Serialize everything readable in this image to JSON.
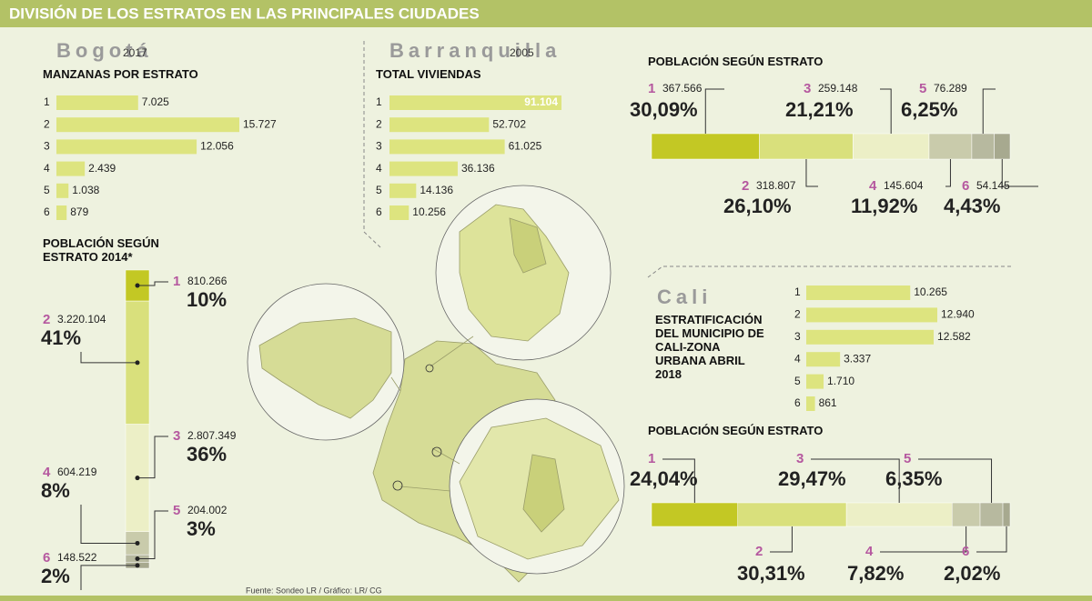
{
  "title": "DIVISIÓN DE LOS ESTRATOS EN LAS PRINCIPALES CIUDADES",
  "source": "Fuente: Sondeo LR / Gráfico: LR/ CG",
  "chart_data": [
    {
      "type": "bar",
      "orientation": "horizontal",
      "city": "Bogotá",
      "year": "2017",
      "title": "MANZANAS POR ESTRATO",
      "categories": [
        "1",
        "2",
        "3",
        "4",
        "5",
        "6"
      ],
      "values": [
        7025,
        15727,
        12056,
        2439,
        1038,
        879
      ],
      "value_labels": [
        "7.025",
        "15.727",
        "12.056",
        "2.439",
        "1.038",
        "879"
      ],
      "color": "#dde47f"
    },
    {
      "type": "stacked_bar",
      "orientation": "vertical",
      "title": "POBLACIÓN SEGÚN ESTRATO 2014*",
      "categories": [
        "1",
        "2",
        "3",
        "4",
        "5",
        "6"
      ],
      "values": [
        810266,
        3220104,
        2807349,
        604219,
        204002,
        148522
      ],
      "value_labels": [
        "810.266",
        "3.220.104",
        "2.807.349",
        "604.219",
        "204.002",
        "148.522"
      ],
      "shares": [
        10,
        41,
        36,
        8,
        3,
        2
      ],
      "share_labels": [
        "10%",
        "41%",
        "36%",
        "8%",
        "3%",
        "2%"
      ],
      "colors": [
        "#c3c824",
        "#d9e07c",
        "#ecefc6",
        "#c9cbab",
        "#b7b99f",
        "#a7a98f"
      ]
    },
    {
      "type": "bar",
      "orientation": "horizontal",
      "city": "Barranquilla",
      "year": "2005",
      "title": "TOTAL VIVIENDAS",
      "categories": [
        "1",
        "2",
        "3",
        "4",
        "5",
        "6"
      ],
      "values": [
        91104,
        52702,
        61025,
        36136,
        14136,
        10256
      ],
      "value_labels": [
        "91.104",
        "52.702",
        "61.025",
        "36.136",
        "14.136",
        "10.256"
      ],
      "color": "#dde47f"
    },
    {
      "type": "stacked_bar",
      "orientation": "horizontal",
      "title": "POBLACIÓN SEGÚN ESTRATO",
      "categories": [
        "1",
        "2",
        "3",
        "4",
        "5",
        "6"
      ],
      "values": [
        367566,
        318807,
        259148,
        145604,
        76289,
        54145
      ],
      "value_labels": [
        "367.566",
        "318.807",
        "259.148",
        "145.604",
        "76.289",
        "54.145"
      ],
      "shares": [
        30.09,
        26.1,
        21.21,
        11.92,
        6.25,
        4.43
      ],
      "share_labels": [
        "30,09%",
        "26,10%",
        "21,21%",
        "11,92%",
        "6,25%",
        "4,43%"
      ],
      "colors": [
        "#c3c824",
        "#d9e07c",
        "#ecefc6",
        "#c9cbab",
        "#b7b99f",
        "#a7a98f"
      ]
    },
    {
      "type": "bar",
      "orientation": "horizontal",
      "city": "Cali",
      "title": "ESTRATIFICACIÓN DEL MUNICIPIO DE CALI-ZONA URBANA ABRIL 2018",
      "categories": [
        "1",
        "2",
        "3",
        "4",
        "5",
        "6"
      ],
      "values": [
        10265,
        12940,
        12582,
        3337,
        1710,
        861
      ],
      "value_labels": [
        "10.265",
        "12.940",
        "12.582",
        "3.337",
        "1.710",
        "861"
      ],
      "color": "#dde47f"
    },
    {
      "type": "stacked_bar",
      "orientation": "horizontal",
      "title": "POBLACIÓN SEGÚN ESTRATO",
      "categories": [
        "1",
        "2",
        "3",
        "4",
        "5",
        "6"
      ],
      "values": [
        24.04,
        30.31,
        29.47,
        7.82,
        6.35,
        2.02
      ],
      "value_labels": [
        "24,04%",
        "30,31%",
        "29,47%",
        "7,82%",
        "6,35%",
        "2,02%"
      ],
      "colors": [
        "#c3c824",
        "#d9e07c",
        "#ecefc6",
        "#c9cbab",
        "#b7b99f",
        "#a7a98f"
      ]
    }
  ]
}
